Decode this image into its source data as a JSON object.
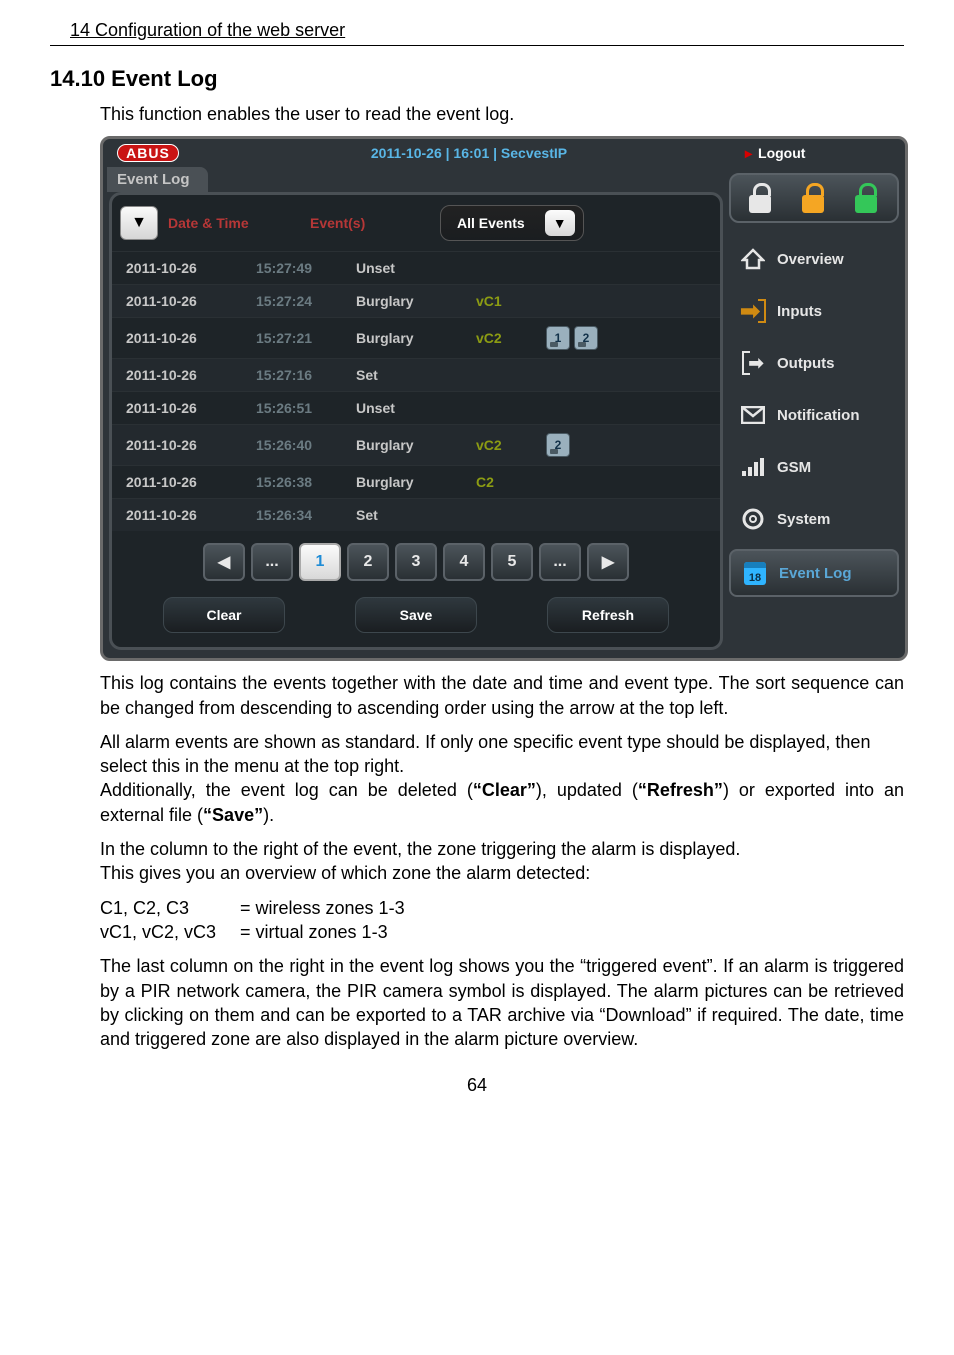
{
  "doc": {
    "top_path": "14  Configuration of the web server",
    "heading": "14.10 Event Log",
    "intro": "This function enables the user to read the event log.",
    "para1": "This log contains the events together with the date and time and event type. The sort sequence can be changed from descending to ascending order using the arrow at the top left.",
    "para2": "All alarm events are shown as standard. If only one specific event type should be displayed, then select this in the menu at the top right.",
    "para3_a": "Additionally, the event log can be deleted (",
    "para3_b": "), updated (",
    "para3_c": ") or exported into an external file (",
    "para3_d": ").",
    "clear": "“Clear”",
    "refresh": "“Refresh”",
    "save": "“Save”",
    "para4a": "In the column to the right of the event, the zone triggering the alarm is displayed.",
    "para4b": "This gives you an overview of which zone the alarm detected:",
    "zone_c_label": "C1, C2, C3",
    "zone_c_def": "= wireless zones 1-3",
    "zone_v_label": "vC1, vC2, vC3",
    "zone_v_def": "= virtual zones 1-3",
    "para5": "The last column on the right in the event log shows you the “triggered event”. If an alarm is triggered by a PIR network camera, the PIR camera symbol is displayed. The alarm pictures can be retrieved by clicking on them and can be exported to a TAR archive via “Download” if required. The date, time and triggered zone are also displayed in the alarm picture overview.",
    "page_num": "64"
  },
  "ss": {
    "brand": "ABUS",
    "datetime": "2011-10-26  |  16:01  |  SecvestIP",
    "logout": "Logout",
    "tab": "Event Log",
    "hdr_date": "Date & Time",
    "hdr_event": "Event(s)",
    "filter": "All Events",
    "rows": [
      {
        "date": "2011-10-26",
        "time": "15:27:49",
        "event": "Unset",
        "zone": "",
        "trig": []
      },
      {
        "date": "2011-10-26",
        "time": "15:27:24",
        "event": "Burglary",
        "zone": "vC1",
        "trig": []
      },
      {
        "date": "2011-10-26",
        "time": "15:27:21",
        "event": "Burglary",
        "zone": "vC2",
        "trig": [
          "1",
          "2"
        ]
      },
      {
        "date": "2011-10-26",
        "time": "15:27:16",
        "event": "Set",
        "zone": "",
        "trig": []
      },
      {
        "date": "2011-10-26",
        "time": "15:26:51",
        "event": "Unset",
        "zone": "",
        "trig": []
      },
      {
        "date": "2011-10-26",
        "time": "15:26:40",
        "event": "Burglary",
        "zone": "vC2",
        "trig": [
          "2"
        ]
      },
      {
        "date": "2011-10-26",
        "time": "15:26:38",
        "event": "Burglary",
        "zone": "C2",
        "trig": []
      },
      {
        "date": "2011-10-26",
        "time": "15:26:34",
        "event": "Set",
        "zone": "",
        "trig": []
      }
    ],
    "pager": {
      "prev": "◀",
      "ell": "...",
      "p1": "1",
      "p2": "2",
      "p3": "3",
      "p4": "4",
      "p5": "5",
      "next": "▶"
    },
    "actions": {
      "clear": "Clear",
      "save": "Save",
      "refresh": "Refresh"
    },
    "side": {
      "overview": "Overview",
      "inputs": "Inputs",
      "outputs": "Outputs",
      "notification": "Notification",
      "gsm": "GSM",
      "system": "System",
      "eventlog": "Event Log",
      "cal": "18"
    }
  }
}
